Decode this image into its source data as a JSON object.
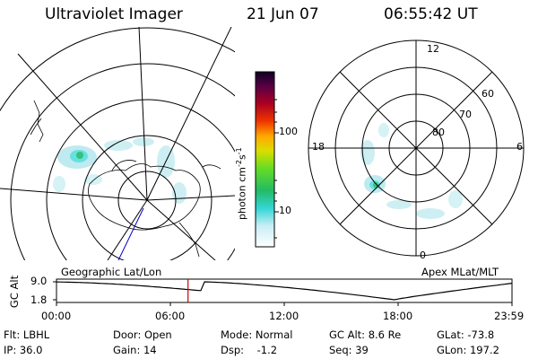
{
  "header": {
    "instrument": "Ultraviolet Imager",
    "date": "21 Jun 07",
    "time": "06:55:42 UT"
  },
  "colorbar": {
    "unit_label": "photon cm",
    "unit_exp1": "-2",
    "unit_s": "s",
    "unit_exp2": "-1",
    "ticks": [
      "100",
      "10"
    ]
  },
  "maps": {
    "left_label": "Geographic Lat/Lon",
    "right_label": "Apex MLat/MLT",
    "mlt": {
      "top": "12",
      "left": "18",
      "right": "6",
      "bottom": "0"
    },
    "mlat": [
      "60",
      "70",
      "80"
    ]
  },
  "altitude_plot": {
    "axis_title": "GC Alt",
    "y_ticks": [
      "9.0",
      "1.8"
    ],
    "x_ticks": [
      "00:00",
      "06:00",
      "12:00",
      "18:00",
      "23:59"
    ],
    "current_time_marker_hours": 6.93
  },
  "status": {
    "filter": "Flt: LBHL",
    "door": "Door: Open",
    "mode": "Mode: Normal",
    "gc_alt": "GC Alt: 8.6 Re",
    "glat": "GLat: -73.8",
    "ip": "IP: 36.0",
    "gain": "Gain: 14",
    "dsp": "Dsp:    -1.2",
    "seq": "Seq: 39",
    "glon": "GLon: 197.2"
  },
  "colors": {
    "marker": "#cc0000",
    "grid": "#000000",
    "orbit": "#0000cc",
    "aurora_faint": "#bfeaf0",
    "aurora_mid": "#66e0e0",
    "aurora_bright": "#33c27a"
  }
}
